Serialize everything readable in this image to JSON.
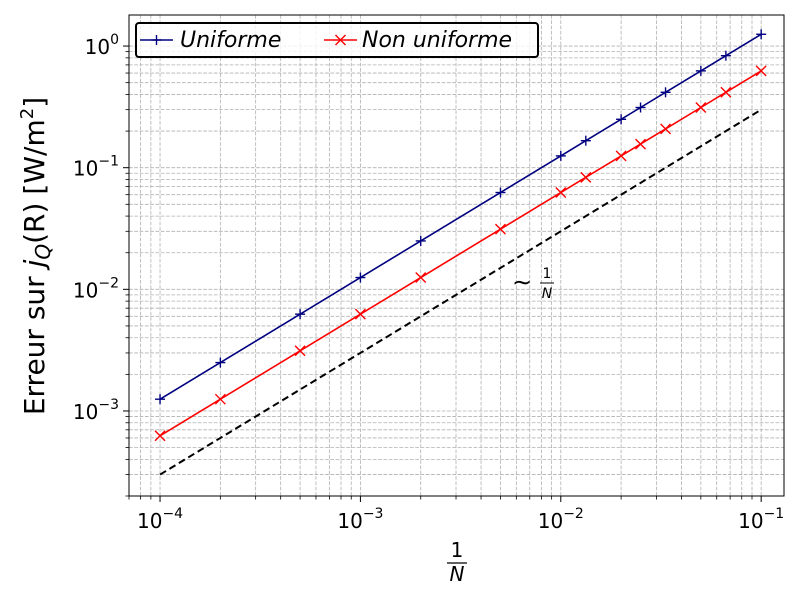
{
  "chart_data": {
    "type": "line",
    "xscale": "log",
    "yscale": "log",
    "xlim": [
      7e-05,
      0.13
    ],
    "ylim": [
      0.0002,
      1.8
    ],
    "grid": true,
    "legend_position": "top-left",
    "xlabel": {
      "numerator": "1",
      "denominator": "N"
    },
    "ylabel": {
      "prefix": "Erreur sur ",
      "symbol": "j",
      "subscript": "Q",
      "argument": "(R)",
      "unit_prefix": "[W/m",
      "unit_exponent": "2",
      "unit_suffix": "]"
    },
    "x_ticks": [
      {
        "value": 0.0001,
        "base": "10",
        "exponent": "−4"
      },
      {
        "value": 0.001,
        "base": "10",
        "exponent": "−3"
      },
      {
        "value": 0.01,
        "base": "10",
        "exponent": "−2"
      },
      {
        "value": 0.1,
        "base": "10",
        "exponent": "−1"
      }
    ],
    "y_ticks": [
      {
        "value": 0.001,
        "base": "10",
        "exponent": "−3"
      },
      {
        "value": 0.01,
        "base": "10",
        "exponent": "−2"
      },
      {
        "value": 0.1,
        "base": "10",
        "exponent": "−1"
      },
      {
        "value": 1,
        "base": "10",
        "exponent": "0"
      }
    ],
    "x": [
      0.0001,
      0.0002,
      0.0005,
      0.001,
      0.002,
      0.005,
      0.01,
      0.01333,
      0.02,
      0.025,
      0.03333,
      0.05,
      0.06667,
      0.1
    ],
    "series": [
      {
        "name": "Uniforme",
        "color": "#000080",
        "marker": "plus",
        "values": [
          0.00125,
          0.0025,
          0.00625,
          0.0125,
          0.025,
          0.0625,
          0.125,
          0.1667,
          0.25,
          0.3125,
          0.4167,
          0.625,
          0.8333,
          1.25
        ]
      },
      {
        "name": "Non uniforme",
        "color": "#ff0000",
        "marker": "x",
        "values": [
          0.000625,
          0.00125,
          0.003125,
          0.00625,
          0.0125,
          0.03125,
          0.0625,
          0.0833,
          0.125,
          0.15625,
          0.2083,
          0.3125,
          0.4167,
          0.625
        ]
      }
    ],
    "reference_line": {
      "color": "#000000",
      "style": "dashed",
      "x": [
        0.0001,
        0.1
      ],
      "values": [
        0.0003,
        0.3
      ]
    },
    "annotation": {
      "prefix": "∼",
      "numerator": "1",
      "denominator": "N",
      "x": 0.008,
      "y": 0.0115
    }
  }
}
